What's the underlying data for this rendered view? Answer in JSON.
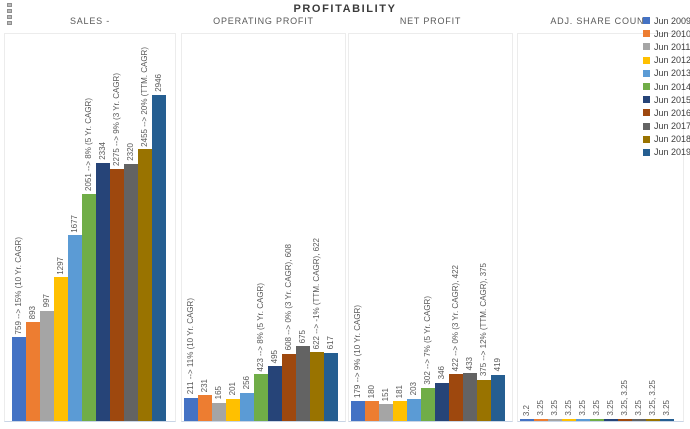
{
  "header": {
    "title": "PROFITABILITY"
  },
  "legend": {
    "position": "right",
    "items": [
      {
        "label": "Jun 2009",
        "color": "#4472C4"
      },
      {
        "label": "Jun 2010",
        "color": "#ED7D31"
      },
      {
        "label": "Jun 2011",
        "color": "#A5A5A5"
      },
      {
        "label": "Jun 2012",
        "color": "#FFC000"
      },
      {
        "label": "Jun 2013",
        "color": "#5B9BD5"
      },
      {
        "label": "Jun 2014",
        "color": "#70AD47"
      },
      {
        "label": "Jun 2015",
        "color": "#264478"
      },
      {
        "label": "Jun 2016",
        "color": "#9E480E"
      },
      {
        "label": "Jun 2017",
        "color": "#636363"
      },
      {
        "label": "Jun 2018",
        "color": "#997300"
      },
      {
        "label": "Jun 2019",
        "color": "#255E91"
      }
    ]
  },
  "chart_data": [
    {
      "type": "bar",
      "title": "SALES -",
      "categories": [
        "Jun 2009",
        "Jun 2010",
        "Jun 2011",
        "Jun 2012",
        "Jun 2013",
        "Jun 2014",
        "Jun 2015",
        "Jun 2016",
        "Jun 2017",
        "Jun 2018",
        "Jun 2019"
      ],
      "values": [
        759,
        893,
        997,
        1297,
        1677,
        2051,
        2334,
        2275,
        2320,
        2455,
        2946
      ],
      "labels": [
        "759 --> 15% (10 Yr. CAGR)",
        "893",
        "997",
        "1297",
        "1677",
        "2051 --> 8% (5 Yr. CAGR)",
        "2334",
        "2275 --> 9% (3 Yr. CAGR)",
        "2320",
        "2455 --> 20% (TTM. CAGR)",
        "2946"
      ],
      "ylim": [
        0,
        3000
      ],
      "grid": false,
      "shared_y_scale": true
    },
    {
      "type": "bar",
      "title": "OPERATING PROFIT",
      "categories": [
        "Jun 2009",
        "Jun 2010",
        "Jun 2011",
        "Jun 2012",
        "Jun 2013",
        "Jun 2014",
        "Jun 2015",
        "Jun 2016",
        "Jun 2017",
        "Jun 2018",
        "Jun 2019"
      ],
      "values": [
        211,
        231,
        165,
        201,
        256,
        423,
        495,
        608,
        675,
        622,
        617
      ],
      "labels": [
        "211 --> 11% (10 Yr. CAGR)",
        "231",
        "165",
        "201",
        "256",
        "423 --> 8% (5 Yr. CAGR)",
        "495",
        "608 --> 0% (3 Yr. CAGR), 608",
        "675",
        "622 --> -1% (TTM. CAGR), 622",
        "617"
      ],
      "ylim": [
        0,
        3000
      ],
      "grid": false,
      "shared_y_scale": true
    },
    {
      "type": "bar",
      "title": "NET PROFIT",
      "categories": [
        "Jun 2009",
        "Jun 2010",
        "Jun 2011",
        "Jun 2012",
        "Jun 2013",
        "Jun 2014",
        "Jun 2015",
        "Jun 2016",
        "Jun 2017",
        "Jun 2018",
        "Jun 2019"
      ],
      "values": [
        179,
        180,
        151,
        181,
        203,
        302,
        346,
        422,
        433,
        375,
        419
      ],
      "labels": [
        "179 --> 9% (10 Yr. CAGR)",
        "180",
        "151",
        "181",
        "203",
        "302 --> 7% (5 Yr. CAGR)",
        "346",
        "422 --> 0% (3 Yr. CAGR), 422",
        "433",
        "375 --> 12% (TTM. CAGR), 375",
        "419"
      ],
      "ylim": [
        0,
        3000
      ],
      "grid": false,
      "shared_y_scale": true
    },
    {
      "type": "bar",
      "title": "ADJ. SHARE COUNT",
      "categories": [
        "Jun 2009",
        "Jun 2010",
        "Jun 2011",
        "Jun 2012",
        "Jun 2013",
        "Jun 2014",
        "Jun 2015",
        "Jun 2016",
        "Jun 2017",
        "Jun 2018",
        "Jun 2019"
      ],
      "values": [
        3.2,
        3.25,
        3.25,
        3.25,
        3.25,
        3.25,
        3.25,
        3.25,
        3.25,
        3.25,
        3.25
      ],
      "labels": [
        "3.2",
        "3.25",
        "3.25",
        "3.25",
        "3.25",
        "3.25",
        "3.25",
        "3.25, 3.25",
        "3.25",
        "3.25, 3.25",
        "3.25"
      ],
      "ylim": [
        0,
        3000
      ],
      "grid": false,
      "shared_y_scale": true
    }
  ]
}
